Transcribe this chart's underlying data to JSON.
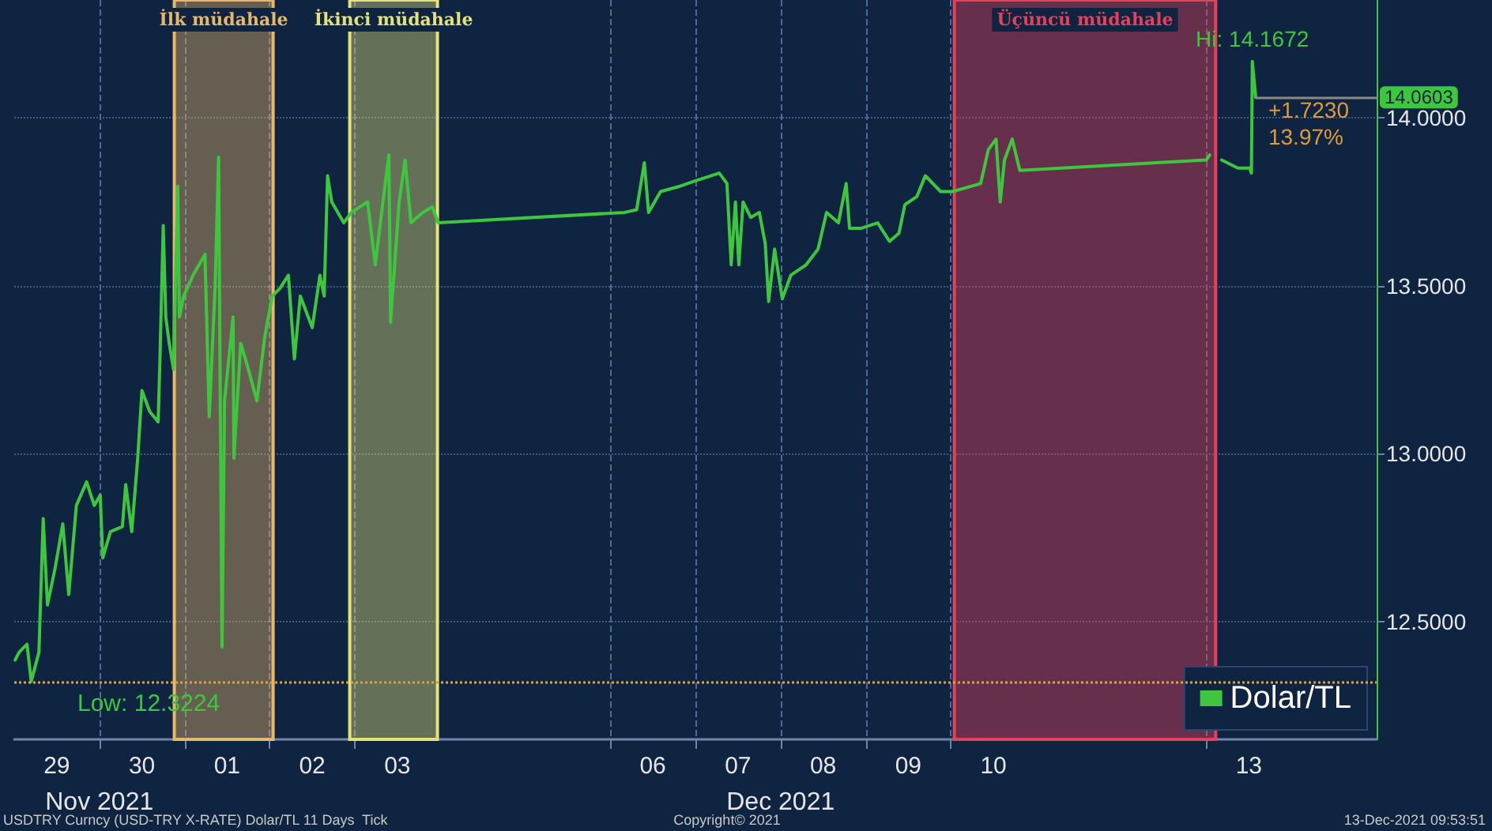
{
  "chart_data": {
    "type": "line",
    "legend": "bottom right",
    "grid": true,
    "marker": "none",
    "line_style": "solid",
    "xlim": [
      "2021-11-29T00:00",
      "2021-12-15T00:00"
    ],
    "xticks": [
      {
        "value": "2021-11-29T12:00",
        "label": "29"
      },
      {
        "value": "2021-11-30T12:00",
        "label": "30"
      },
      {
        "value": "2021-12-01T12:00",
        "label": "01"
      },
      {
        "value": "2021-12-02T12:00",
        "label": "02"
      },
      {
        "value": "2021-12-03T12:00",
        "label": "03"
      },
      {
        "value": "2021-12-06T12:00",
        "label": "06"
      },
      {
        "value": "2021-12-07T12:00",
        "label": "07"
      },
      {
        "value": "2021-12-08T12:00",
        "label": "08"
      },
      {
        "value": "2021-12-09T12:00",
        "label": "09"
      },
      {
        "value": "2021-12-10T12:00",
        "label": "10"
      },
      {
        "value": "2021-12-13T12:00",
        "label": "13"
      },
      {
        "value": "2021-11-30T00:00",
        "label": null
      },
      {
        "value": "2021-12-01T00:00",
        "label": null
      },
      {
        "value": "2021-12-02T00:00",
        "label": null
      },
      {
        "value": "2021-12-03T00:00",
        "label": null
      },
      {
        "value": "2021-12-06T00:00",
        "label": null
      },
      {
        "value": "2021-12-07T00:00",
        "label": null
      },
      {
        "value": "2021-12-08T00:00",
        "label": null
      },
      {
        "value": "2021-12-09T00:00",
        "label": null
      },
      {
        "value": "2021-12-10T00:00",
        "label": null
      },
      {
        "value": "2021-12-13T00:00",
        "label": null
      }
    ],
    "ylim": [
      12.15,
      14.35
    ],
    "yticks": [
      {
        "value": 12.5,
        "label": "12.5000"
      },
      {
        "value": 13,
        "label": "13.0000"
      },
      {
        "value": 13.5,
        "label": "13.5000"
      },
      {
        "value": 14,
        "label": "14.0000"
      }
    ],
    "series": [
      {
        "name": "Dolar/TL",
        "color": "#3ec73e",
        "x": [
          "2021-11-29T00:15",
          "2021-11-29T01:26",
          "2021-11-29T03:36",
          "2021-11-29T04:48",
          "2021-11-29T06:58",
          "2021-11-29T08:10",
          "2021-11-29T09:22",
          "2021-11-29T11:31",
          "2021-11-29T13:41",
          "2021-11-29T15:22",
          "2021-11-29T17:31",
          "2021-11-29T20:24",
          "2021-11-29T22:34",
          "2021-11-30T00:14",
          "2021-11-30T00:58",
          "2021-11-30T03:07",
          "2021-11-30T06:29",
          "2021-11-30T07:26",
          "2021-11-30T09:07",
          "2021-11-30T10:48",
          "2021-11-30T12:00",
          "2021-11-30T14:10",
          "2021-11-30T16:34",
          "2021-11-30T17:02",
          "2021-11-30T18:00",
          "2021-11-30T18:43",
          "2021-11-30T19:41",
          "2021-11-30T20:53",
          "2021-11-30T22:05",
          "2021-11-30T22:34",
          "2021-11-30T23:46",
          "2021-12-01T02:24",
          "2021-12-01T05:46",
          "2021-12-01T06:58",
          "2021-12-01T08:38",
          "2021-12-01T09:36",
          "2021-12-01T10:34",
          "2021-12-01T11:17",
          "2021-12-01T13:41",
          "2021-12-01T13:55",
          "2021-12-01T15:50",
          "2021-12-01T18:00",
          "2021-12-01T20:24",
          "2021-12-01T22:34",
          "2021-12-02T00:43",
          "2021-12-02T02:53",
          "2021-12-02T05:17",
          "2021-12-02T06:58",
          "2021-12-02T08:38",
          "2021-12-02T12:00",
          "2021-12-02T14:10",
          "2021-12-02T15:22",
          "2021-12-02T16:19",
          "2021-12-02T17:31",
          "2021-12-02T20:53",
          "2021-12-02T23:02",
          "2021-12-03T03:36",
          "2021-12-03T05:46",
          "2021-12-03T07:55",
          "2021-12-03T09:36",
          "2021-12-03T10:05",
          "2021-12-03T12:29",
          "2021-12-03T14:10",
          "2021-12-03T15:50",
          "2021-12-03T19:12",
          "2021-12-03T21:50",
          "2021-12-03T23:31",
          "2021-12-06T04:05",
          "2021-12-06T07:26",
          "2021-12-06T09:36",
          "2021-12-06T10:48",
          "2021-12-06T14:10",
          "2021-12-06T19:41",
          "2021-12-07T00:00",
          "2021-12-07T06:43",
          "2021-12-07T08:53",
          "2021-12-07T10:05",
          "2021-12-07T11:17",
          "2021-12-07T12:14",
          "2021-12-07T13:26",
          "2021-12-07T15:36",
          "2021-12-07T18:00",
          "2021-12-07T19:41",
          "2021-12-07T20:38",
          "2021-12-07T22:19",
          "2021-12-08T00:29",
          "2021-12-08T02:53",
          "2021-12-08T07:12",
          "2021-12-08T10:34",
          "2021-12-08T12:58",
          "2021-12-08T16:19",
          "2021-12-08T18:29",
          "2021-12-08T19:26",
          "2021-12-08T22:48",
          "2021-12-09T03:22",
          "2021-12-09T06:43",
          "2021-12-09T09:22",
          "2021-12-09T11:02",
          "2021-12-09T14:24",
          "2021-12-09T16:48",
          "2021-12-09T21:07",
          "2021-12-10T00:29",
          "2021-12-10T08:24",
          "2021-12-10T10:34",
          "2021-12-10T12:43",
          "2021-12-10T13:55",
          "2021-12-10T15:07",
          "2021-12-10T17:17",
          "2021-12-10T19:26",
          "2021-12-13T00:00",
          "2021-12-13T00:58",
          "2021-12-13T02:24",
          "2021-12-13T04:19",
          "2021-12-13T08:53",
          "2021-12-13T12:14",
          "2021-12-13T12:43",
          "2021-12-13T12:58",
          "2021-12-13T13:55"
        ],
        "values": [
          12.386,
          12.41,
          12.433,
          12.3224,
          12.41,
          12.807,
          12.55,
          12.659,
          12.791,
          12.581,
          12.846,
          12.916,
          12.846,
          12.877,
          12.69,
          12.768,
          12.783,
          12.908,
          12.768,
          12.986,
          13.188,
          13.126,
          13.095,
          13.266,
          13.679,
          13.407,
          13.329,
          13.251,
          13.796,
          13.407,
          13.469,
          13.531,
          13.593,
          13.11,
          13.5,
          13.882,
          12.425,
          13.157,
          13.407,
          12.986,
          13.329,
          13.251,
          13.157,
          13.344,
          13.469,
          13.492,
          13.531,
          13.282,
          13.469,
          13.375,
          13.531,
          13.469,
          13.827,
          13.749,
          13.687,
          13.718,
          13.749,
          13.562,
          13.749,
          13.889,
          13.391,
          13.749,
          13.874,
          13.687,
          13.718,
          13.734,
          13.687,
          13.718,
          13.726,
          13.866,
          13.718,
          13.78,
          13.796,
          13.812,
          13.835,
          13.804,
          13.562,
          13.749,
          13.562,
          13.749,
          13.703,
          13.718,
          13.625,
          13.453,
          13.609,
          13.461,
          13.531,
          13.562,
          13.609,
          13.718,
          13.687,
          13.804,
          13.671,
          13.671,
          13.687,
          13.632,
          13.656,
          13.741,
          13.765,
          13.827,
          13.78,
          13.78,
          13.804,
          13.905,
          13.936,
          13.749,
          13.874,
          13.936,
          13.843,
          13.874,
          13.889,
          null,
          13.874,
          13.85,
          13.85,
          13.835,
          14.1672,
          14.0603
        ],
        "value_labels": [
          null,
          null,
          null,
          null,
          null,
          null,
          null,
          null,
          null,
          null,
          null,
          null,
          null,
          null,
          null,
          null,
          null,
          null,
          null,
          null,
          null,
          null,
          null,
          null,
          null,
          null,
          null,
          null,
          null,
          null,
          null,
          null,
          null,
          null,
          null,
          null,
          null,
          null,
          null,
          null,
          null,
          null,
          null,
          null,
          null,
          null,
          null,
          null,
          null,
          null,
          null,
          null,
          null,
          null,
          null,
          null,
          null,
          null,
          null,
          null,
          null,
          null,
          null,
          null,
          null,
          null,
          null,
          null,
          null,
          null,
          null,
          null,
          null,
          null,
          null,
          null,
          null,
          null,
          null,
          null,
          null,
          null,
          null,
          null,
          null,
          null,
          null,
          null,
          null,
          null,
          null,
          null,
          null,
          null,
          null,
          null,
          null,
          null,
          null,
          null,
          null,
          null,
          null,
          null,
          null,
          null,
          null,
          null,
          null,
          null,
          null,
          null,
          null,
          null,
          null,
          null,
          "Hi: 14.1672",
          null
        ]
      }
    ],
    "bands": [
      {
        "axis": "x",
        "from": "2021-11-30T21:07",
        "to": "2021-12-02T00:58",
        "label": "İlk müdahale",
        "color": "#e8b86a"
      },
      {
        "axis": "x",
        "from": "2021-12-02T22:34",
        "to": "2021-12-03T23:17",
        "label": "İkinci müdahale",
        "color": "#e3e37a"
      },
      {
        "axis": "x",
        "from": "2021-12-10T00:58",
        "to": "2021-12-13T02:38",
        "label": "Üçüncü müdahale",
        "color": "#e8405a"
      }
    ],
    "ref_lines": [
      {
        "axis": "y",
        "value": 12.3224,
        "label": "Low: 12.3224",
        "color": "#d9a441",
        "line_style": "dotted"
      },
      {
        "axis": "y",
        "value": 14.0603,
        "label": "14.0603",
        "color": "#8a8a8a",
        "line_style": "solid"
      }
    ],
    "annotations": [
      {
        "text": "+1.7230",
        "x": "2021-12-13T13:55",
        "y": 14.0603
      },
      {
        "text": "13.97%",
        "x": "2021-12-13T13:55",
        "y": 14.0603
      },
      "Nov 2021",
      "Dec 2021",
      "USDTRY Curncy (USD-TRY X-RATE) Dolar/TL 11 Days  Tick",
      "Copyright© 2021",
      "13-Dec-2021 09:53:51"
    ]
  }
}
